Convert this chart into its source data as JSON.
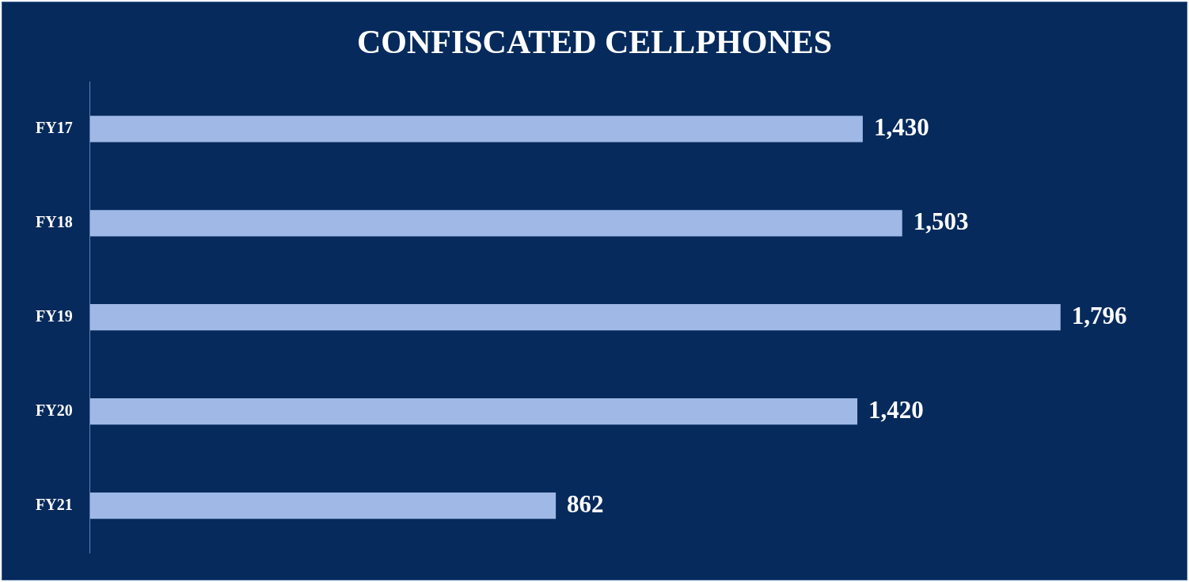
{
  "chart_data": {
    "type": "bar",
    "orientation": "horizontal",
    "title": "CONFISCATED CELLPHONES",
    "categories": [
      "FY17",
      "FY18",
      "FY19",
      "FY20",
      "FY21"
    ],
    "values": [
      1430,
      1503,
      1796,
      1420,
      862
    ],
    "color": "#9fb8e6",
    "value_labels": [
      "1,430",
      "1,503",
      "1,796",
      "1,420",
      "862"
    ],
    "tick_labels": "y"
  }
}
